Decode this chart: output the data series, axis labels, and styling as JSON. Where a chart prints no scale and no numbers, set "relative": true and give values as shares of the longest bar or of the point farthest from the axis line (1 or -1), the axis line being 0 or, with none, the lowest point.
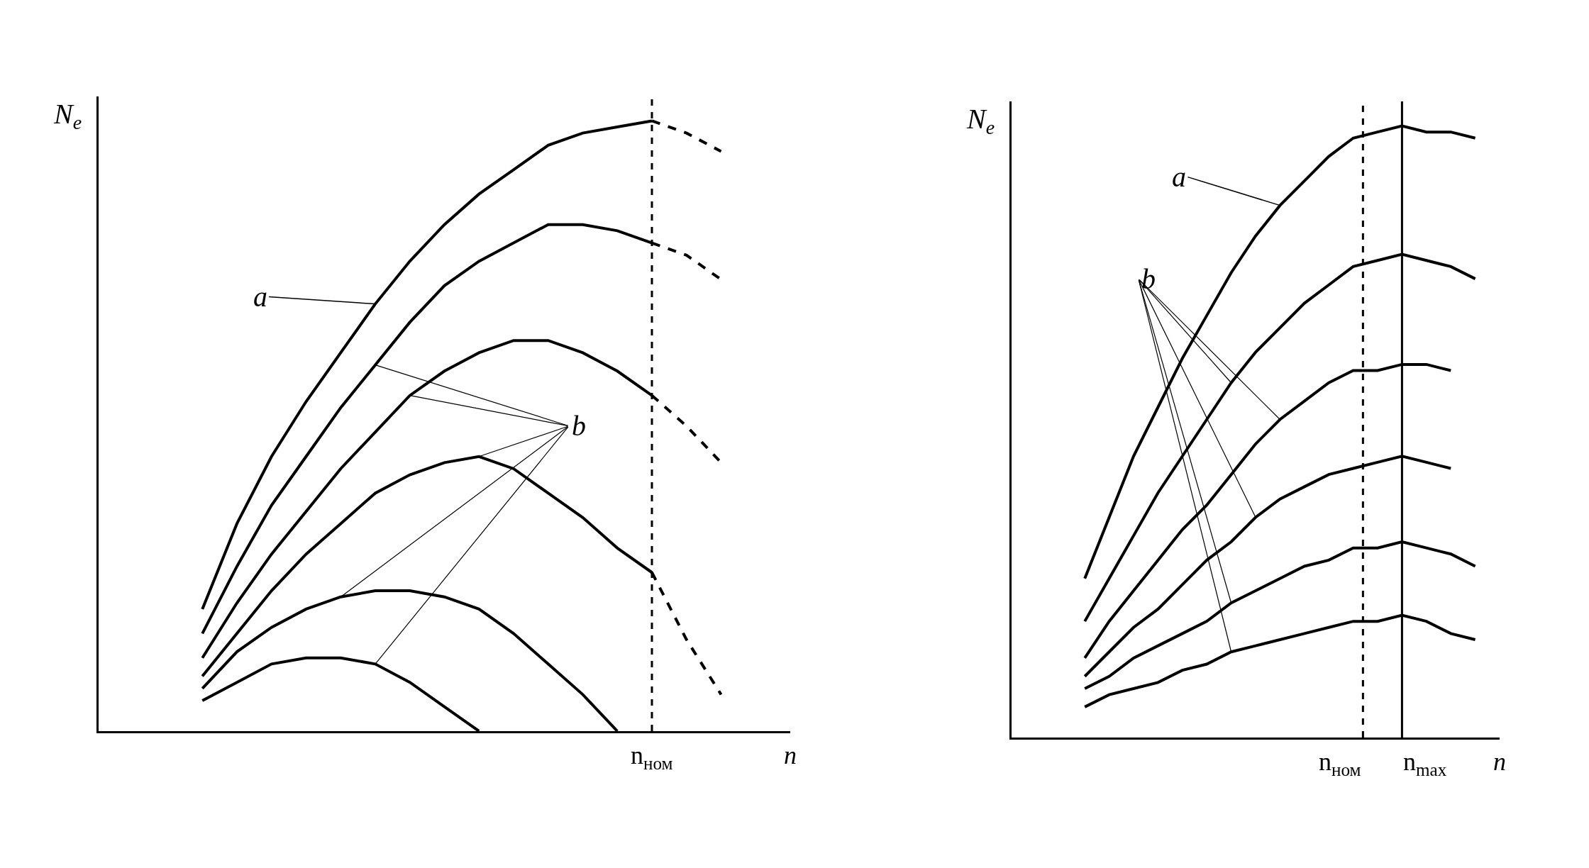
{
  "chart_data": [
    {
      "type": "line",
      "relative": true,
      "ylabel": "N$_{e}$",
      "xlabel": "n",
      "categories": [
        null,
        null,
        null,
        null,
        null,
        null,
        null,
        null,
        null,
        null,
        null,
        null,
        null,
        null,
        null,
        null,
        null,
        null,
        null,
        null,
        null
      ],
      "marker": "none",
      "series": [
        {
          "color": "#000000",
          "values": [
            null,
            null,
            null,
            0.2,
            0.34,
            0.45,
            0.54,
            0.62,
            0.7,
            0.77,
            0.83,
            0.88,
            0.92,
            0.96,
            0.98,
            0.99,
            1.0,
            null,
            null,
            null,
            null
          ]
        },
        {
          "color": "#000000",
          "values": [
            null,
            null,
            null,
            0.16,
            0.27,
            0.37,
            0.45,
            0.53,
            0.6,
            0.67,
            0.73,
            0.77,
            0.8,
            0.83,
            0.83,
            0.82,
            0.8,
            null,
            null,
            null,
            null
          ]
        },
        {
          "color": "#000000",
          "values": [
            null,
            null,
            null,
            0.12,
            0.21,
            0.29,
            0.36,
            0.43,
            0.49,
            0.55,
            0.59,
            0.62,
            0.64,
            0.64,
            0.62,
            0.59,
            0.55,
            null,
            null,
            null,
            null
          ]
        },
        {
          "color": "#000000",
          "values": [
            null,
            null,
            null,
            0.09,
            0.16,
            0.23,
            0.29,
            0.34,
            0.39,
            0.42,
            0.44,
            0.45,
            0.43,
            0.39,
            0.35,
            0.3,
            0.26,
            null,
            null,
            null,
            null
          ]
        },
        {
          "color": "#000000",
          "values": [
            null,
            null,
            null,
            0.07,
            0.13,
            0.17,
            0.2,
            0.22,
            0.23,
            0.23,
            0.22,
            0.2,
            0.16,
            0.11,
            0.06,
            0,
            null,
            null,
            null,
            null,
            null
          ]
        },
        {
          "color": "#000000",
          "values": [
            null,
            null,
            null,
            0.05,
            0.08,
            0.11,
            0.12,
            0.12,
            0.11,
            0.08,
            0.04,
            0,
            null,
            null,
            null,
            null,
            null,
            null,
            null,
            null,
            null
          ]
        },
        {
          "color": "#000000",
          "line_style": "dashed",
          "values": [
            null,
            null,
            null,
            null,
            null,
            null,
            null,
            null,
            null,
            null,
            null,
            null,
            null,
            null,
            null,
            null,
            1.0,
            0.98,
            0.95,
            null,
            null
          ]
        },
        {
          "color": "#000000",
          "line_style": "dashed",
          "values": [
            null,
            null,
            null,
            null,
            null,
            null,
            null,
            null,
            null,
            null,
            null,
            null,
            null,
            null,
            null,
            null,
            0.8,
            0.78,
            0.74,
            null,
            null
          ]
        },
        {
          "color": "#000000",
          "line_style": "dashed",
          "values": [
            null,
            null,
            null,
            null,
            null,
            null,
            null,
            null,
            null,
            null,
            null,
            null,
            null,
            null,
            null,
            null,
            0.55,
            0.5,
            0.44,
            null,
            null
          ]
        },
        {
          "color": "#000000",
          "line_style": "dashed",
          "values": [
            null,
            null,
            null,
            null,
            null,
            null,
            null,
            null,
            null,
            null,
            null,
            null,
            null,
            null,
            null,
            null,
            0.26,
            0.15,
            0.06,
            null,
            null
          ]
        }
      ],
      "annotations": [
        "a",
        "b",
        "n$_{ном}$"
      ]
    },
    {
      "type": "line",
      "relative": true,
      "ylabel": "N$_{e}$",
      "xlabel": "n",
      "categories": [
        null,
        null,
        null,
        null,
        null,
        null,
        null,
        null,
        null,
        null,
        null,
        null,
        null,
        null,
        null,
        null,
        null,
        null,
        null,
        null,
        null
      ],
      "marker": "none",
      "series": [
        {
          "color": "#000000",
          "values": [
            null,
            null,
            null,
            0.26,
            0.36,
            0.46,
            0.54,
            0.62,
            0.69,
            0.76,
            0.82,
            0.87,
            0.91,
            0.95,
            0.98,
            0.99,
            1.0,
            0.99,
            0.99,
            0.98,
            null
          ]
        },
        {
          "color": "#000000",
          "values": [
            null,
            null,
            null,
            0.19,
            0.26,
            0.33,
            0.4,
            0.46,
            0.52,
            0.58,
            0.63,
            0.67,
            0.71,
            0.74,
            0.77,
            0.78,
            0.79,
            0.78,
            0.77,
            0.75,
            null
          ]
        },
        {
          "color": "#000000",
          "values": [
            null,
            null,
            null,
            0.13,
            0.19,
            0.24,
            0.29,
            0.34,
            0.38,
            0.43,
            0.48,
            0.52,
            0.55,
            0.58,
            0.6,
            0.6,
            0.61,
            0.61,
            0.6,
            null,
            null
          ]
        },
        {
          "color": "#000000",
          "values": [
            null,
            null,
            null,
            0.1,
            0.14,
            0.18,
            0.21,
            0.25,
            0.29,
            0.32,
            0.36,
            0.39,
            0.41,
            0.43,
            0.44,
            0.45,
            0.46,
            0.45,
            0.44,
            null,
            null
          ]
        },
        {
          "color": "#000000",
          "values": [
            null,
            null,
            null,
            0.08,
            0.1,
            0.13,
            0.15,
            0.17,
            0.19,
            0.22,
            0.24,
            0.26,
            0.28,
            0.29,
            0.31,
            0.31,
            0.32,
            0.31,
            0.3,
            0.28,
            null
          ]
        },
        {
          "color": "#000000",
          "values": [
            null,
            null,
            null,
            0.05,
            0.07,
            0.08,
            0.09,
            0.11,
            0.12,
            0.14,
            0.15,
            0.16,
            0.17,
            0.18,
            0.19,
            0.19,
            0.2,
            0.19,
            0.17,
            0.16,
            null
          ]
        }
      ],
      "annotations": [
        "a",
        "b",
        "n$_{ном}$",
        "n$_{max}$"
      ]
    }
  ]
}
